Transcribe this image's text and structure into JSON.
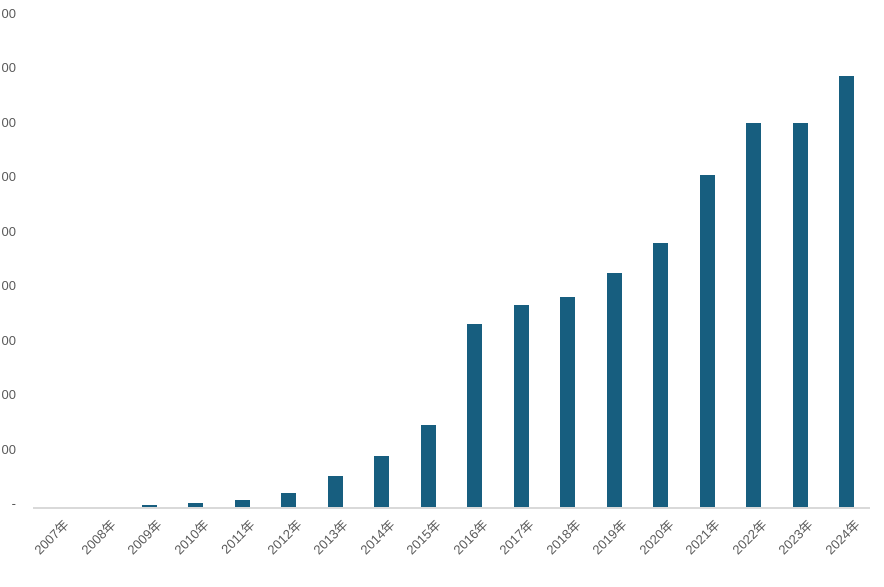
{
  "chart_data": {
    "type": "bar",
    "title": "",
    "categories": [
      "2007年",
      "2008年",
      "2009年",
      "2010年",
      "2011年",
      "2012年",
      "2013年",
      "2014年",
      "2015年",
      "2016年",
      "2017年",
      "2018年",
      "2019年",
      "2020年",
      "2021年",
      "2022年",
      "2023年",
      "2024年"
    ],
    "values": [
      0,
      0,
      4,
      7,
      12,
      25,
      56,
      93,
      151,
      335,
      370,
      385,
      429,
      485,
      609,
      705,
      705,
      790
    ],
    "y_axis_labels_visible_top_to_bottom": [
      "00",
      "00",
      "00",
      "00",
      "00",
      "00",
      "00",
      "00",
      "00",
      "-"
    ],
    "y_labels_clipped_at_left_edge": true,
    "ylim": [
      0,
      930
    ],
    "y_gridline_step": 100,
    "gridlines": false,
    "legend": false,
    "colors": {
      "bar": "#175E7F",
      "axis_line": "#D9D9D9",
      "tick_label": "#595959"
    }
  }
}
